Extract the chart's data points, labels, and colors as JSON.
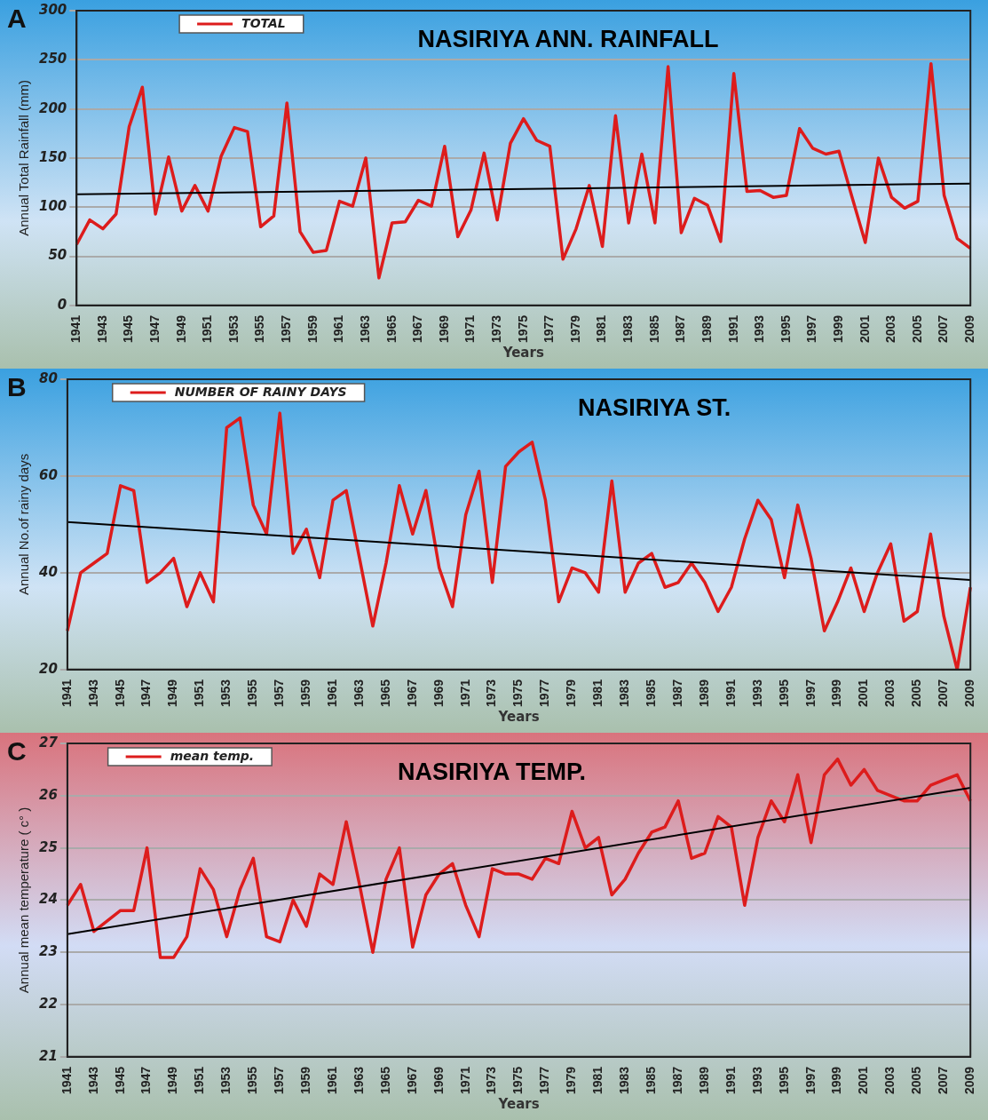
{
  "chart_data": [
    {
      "type": "line",
      "title": "NASIRIYA ANN. RAINFALL",
      "xlabel": "Years",
      "ylabel": "Annual Total Rainfall (mm)",
      "annotations": [
        "A"
      ],
      "categories": [
        "1941",
        null,
        "1943",
        null,
        "1945",
        null,
        "1947",
        null,
        "1949",
        null,
        "1951",
        null,
        "1953",
        null,
        "1955",
        null,
        "1957",
        null,
        "1959",
        null,
        "1961",
        null,
        "1963",
        null,
        "1965",
        null,
        "1967",
        null,
        "1969",
        null,
        "1971",
        null,
        "1973",
        null,
        "1975",
        null,
        "1977",
        null,
        "1979",
        null,
        "1981",
        null,
        "1983",
        null,
        "1985",
        null,
        "1987",
        null,
        "1989",
        null,
        "1991",
        null,
        "1993",
        null,
        "1995",
        null,
        "1997",
        null,
        "1999",
        null,
        "2001",
        null,
        "2003",
        null,
        "2005",
        null,
        "2007",
        null,
        "2009"
      ],
      "series": [
        {
          "name": "TOTAL",
          "color": "#dd1c1c",
          "values": [
            62,
            87,
            78,
            93,
            182,
            222,
            93,
            151,
            96,
            122,
            96,
            152,
            181,
            177,
            80,
            91,
            206,
            75,
            54,
            56,
            106,
            101,
            150,
            28,
            84,
            85,
            107,
            101,
            162,
            70,
            97,
            155,
            87,
            165,
            190,
            168,
            162,
            47,
            78,
            122,
            60,
            193,
            84,
            154,
            84,
            243,
            74,
            109,
            102,
            65,
            236,
            116,
            117,
            110,
            112,
            180,
            160,
            154,
            157,
            110,
            64,
            150,
            110,
            99,
            106,
            246,
            112,
            68,
            58
          ]
        },
        {
          "type": "line",
          "color": "#000000",
          "values": [
            113,
            null,
            null,
            null,
            null,
            null,
            null,
            null,
            null,
            null,
            null,
            null,
            null,
            null,
            null,
            null,
            null,
            null,
            null,
            null,
            null,
            null,
            null,
            null,
            null,
            null,
            null,
            null,
            null,
            null,
            null,
            null,
            null,
            null,
            null,
            null,
            null,
            null,
            null,
            null,
            null,
            null,
            null,
            null,
            null,
            null,
            null,
            null,
            null,
            null,
            null,
            null,
            null,
            null,
            null,
            null,
            null,
            null,
            null,
            null,
            null,
            null,
            null,
            null,
            null,
            null,
            null,
            null,
            124
          ]
        }
      ],
      "ylim": [
        0,
        300
      ],
      "yticks": [
        0,
        50,
        100,
        150,
        200,
        250,
        300
      ],
      "grid": "y",
      "legend": "top left"
    },
    {
      "type": "line",
      "title": "NASIRIYA ST.",
      "xlabel": "Years",
      "ylabel": "Annual No.of rainy days",
      "annotations": [
        "B"
      ],
      "categories": [
        "1941",
        null,
        "1943",
        null,
        "1945",
        null,
        "1947",
        null,
        "1949",
        null,
        "1951",
        null,
        "1953",
        null,
        "1955",
        null,
        "1957",
        null,
        "1959",
        null,
        "1961",
        null,
        "1963",
        null,
        "1965",
        null,
        "1967",
        null,
        "1969",
        null,
        "1971",
        null,
        "1973",
        null,
        "1975",
        null,
        "1977",
        null,
        "1979",
        null,
        "1981",
        null,
        "1983",
        null,
        "1985",
        null,
        "1987",
        null,
        "1989",
        null,
        "1991",
        null,
        "1993",
        null,
        "1995",
        null,
        "1997",
        null,
        "1999",
        null,
        "2001",
        null,
        "2003",
        null,
        "2005",
        null,
        "2007",
        null,
        "2009"
      ],
      "series": [
        {
          "name": "NUMBER OF RAINY DAYS",
          "color": "#dd1c1c",
          "values": [
            28,
            40,
            42,
            44,
            58,
            57,
            38,
            40,
            43,
            33,
            40,
            34,
            70,
            72,
            54,
            48,
            73,
            44,
            49,
            39,
            55,
            57,
            43,
            29,
            42,
            58,
            48,
            57,
            41,
            33,
            52,
            61,
            38,
            62,
            65,
            67,
            55,
            34,
            41,
            40,
            36,
            59,
            36,
            42,
            44,
            37,
            38,
            42,
            38,
            32,
            37,
            47,
            55,
            51,
            39,
            54,
            43,
            28,
            34,
            41,
            32,
            40,
            46,
            30,
            32,
            48,
            31,
            20,
            37
          ]
        },
        {
          "type": "line",
          "color": "#000000",
          "values": [
            50.5,
            null,
            null,
            null,
            null,
            null,
            null,
            null,
            null,
            null,
            null,
            null,
            null,
            null,
            null,
            null,
            null,
            null,
            null,
            null,
            null,
            null,
            null,
            null,
            null,
            null,
            null,
            null,
            null,
            null,
            null,
            null,
            null,
            null,
            null,
            null,
            null,
            null,
            null,
            null,
            null,
            null,
            null,
            null,
            null,
            null,
            null,
            null,
            null,
            null,
            null,
            null,
            null,
            null,
            null,
            null,
            null,
            null,
            null,
            null,
            null,
            null,
            null,
            null,
            null,
            null,
            null,
            null,
            38.5
          ]
        }
      ],
      "ylim": [
        20,
        80
      ],
      "yticks": [
        20,
        40,
        60,
        80
      ],
      "grid": "y",
      "legend": "top left"
    },
    {
      "type": "line",
      "title": "NASIRIYA TEMP.",
      "xlabel": "Years",
      "ylabel": "Annual mean temperature ( c° )",
      "annotations": [
        "C"
      ],
      "categories": [
        "1941",
        null,
        "1943",
        null,
        "1945",
        null,
        "1947",
        null,
        "1949",
        null,
        "1951",
        null,
        "1953",
        null,
        "1955",
        null,
        "1957",
        null,
        "1959",
        null,
        "1961",
        null,
        "1963",
        null,
        "1965",
        null,
        "1967",
        null,
        "1969",
        null,
        "1971",
        null,
        "1973",
        null,
        "1975",
        null,
        "1977",
        null,
        "1979",
        null,
        "1981",
        null,
        "1983",
        null,
        "1985",
        null,
        "1987",
        null,
        "1989",
        null,
        "1991",
        null,
        "1993",
        null,
        "1995",
        null,
        "1997",
        null,
        "1999",
        null,
        "2001",
        null,
        "2003",
        null,
        "2005",
        null,
        "2007",
        null,
        "2009"
      ],
      "series": [
        {
          "name": "mean temp.",
          "color": "#dd1c1c",
          "values": [
            23.9,
            24.3,
            23.4,
            23.6,
            23.8,
            23.8,
            25.0,
            22.9,
            22.9,
            23.3,
            24.6,
            24.2,
            23.3,
            24.2,
            24.8,
            23.3,
            23.2,
            24.0,
            23.5,
            24.5,
            24.3,
            25.5,
            24.3,
            23.0,
            24.4,
            25.0,
            23.1,
            24.1,
            24.5,
            24.7,
            23.9,
            23.3,
            24.6,
            24.5,
            24.5,
            24.4,
            24.8,
            24.7,
            25.7,
            25.0,
            25.2,
            24.1,
            24.4,
            24.9,
            25.3,
            25.4,
            25.9,
            24.8,
            24.9,
            25.6,
            25.4,
            23.9,
            25.2,
            25.9,
            25.5,
            26.4,
            25.1,
            26.4,
            26.7,
            26.2,
            26.5,
            26.1,
            26.0,
            25.9,
            25.9,
            26.2,
            26.3,
            26.4,
            25.9
          ]
        },
        {
          "type": "line",
          "color": "#000000",
          "values": [
            23.35,
            null,
            null,
            null,
            null,
            null,
            null,
            null,
            null,
            null,
            null,
            null,
            null,
            null,
            null,
            null,
            null,
            null,
            null,
            null,
            null,
            null,
            null,
            null,
            null,
            null,
            null,
            null,
            null,
            null,
            null,
            null,
            null,
            null,
            null,
            null,
            null,
            null,
            null,
            null,
            null,
            null,
            null,
            null,
            null,
            null,
            null,
            null,
            null,
            null,
            null,
            null,
            null,
            null,
            null,
            null,
            null,
            null,
            null,
            null,
            null,
            null,
            null,
            null,
            null,
            null,
            null,
            null,
            26.15
          ]
        }
      ],
      "ylim": [
        21,
        27
      ],
      "yticks": [
        21,
        22,
        23,
        24,
        25,
        26,
        27
      ],
      "grid": "y",
      "legend": "top left"
    }
  ]
}
